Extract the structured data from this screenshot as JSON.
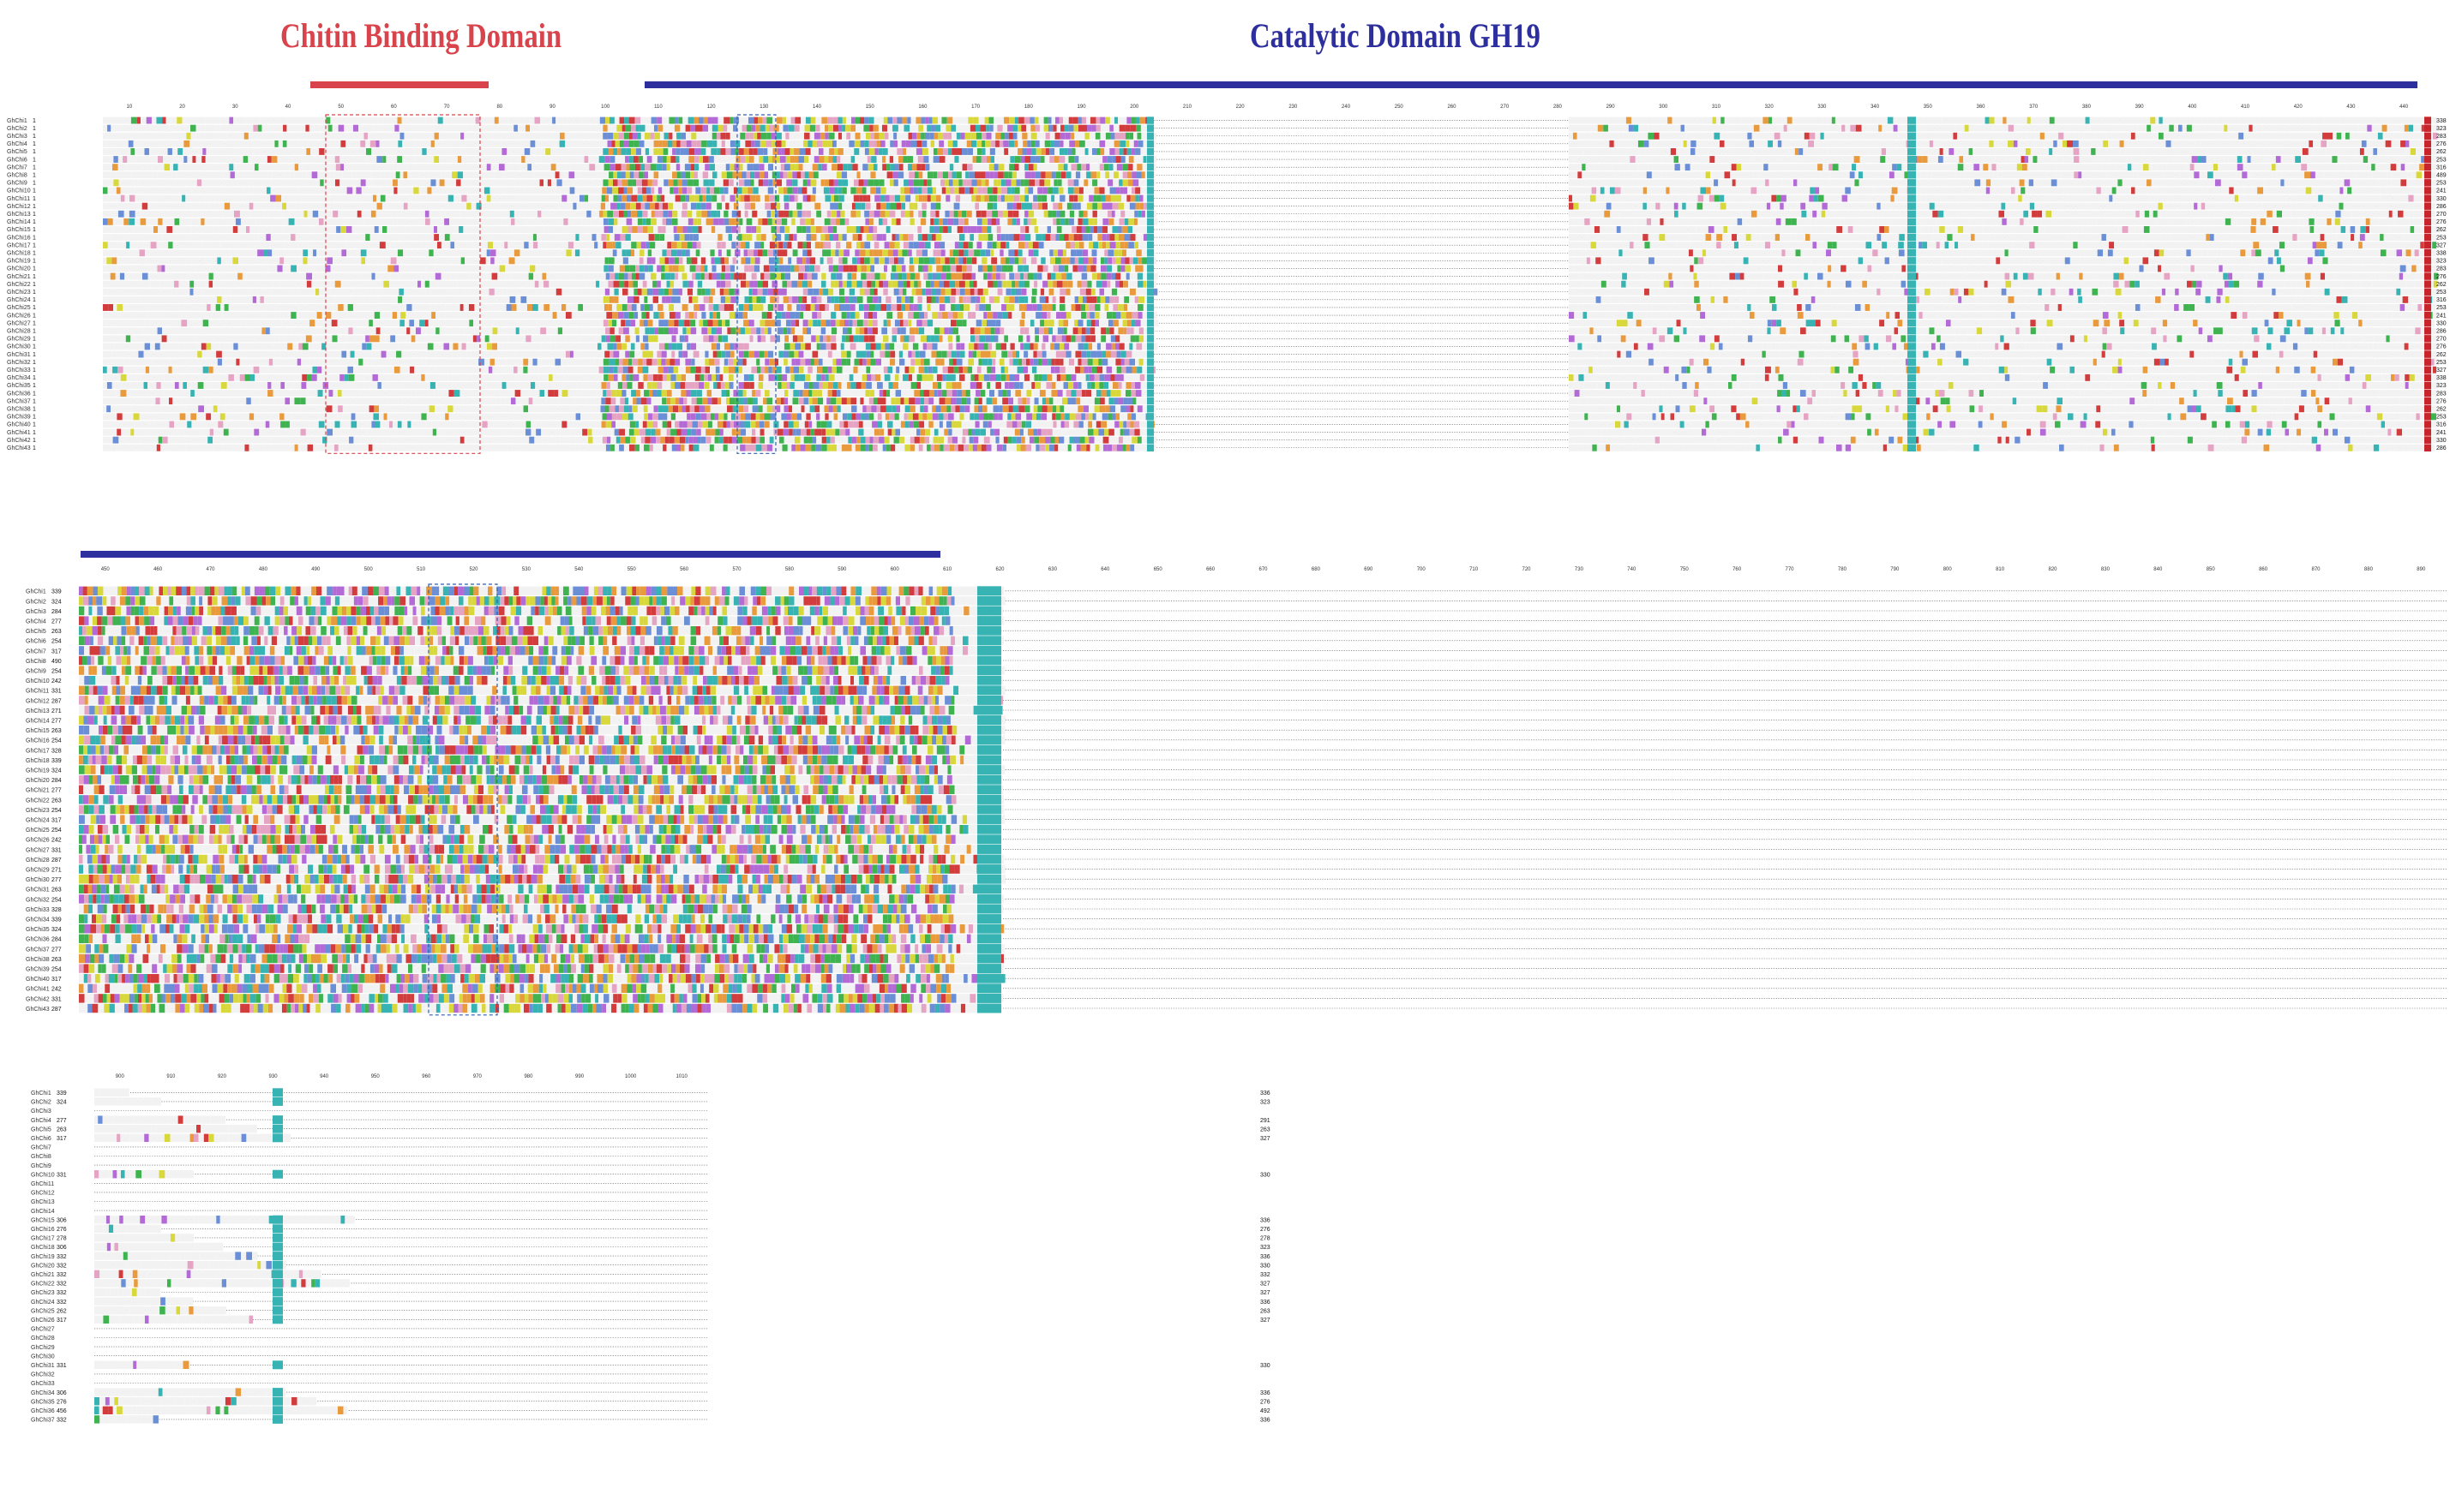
{
  "figure": {
    "domains": [
      {
        "name": "Chitin Binding Domain",
        "color": "#d9434b"
      },
      {
        "name": "Catalytic Domain GH19",
        "color": "#2e2f9e"
      }
    ]
  },
  "blocks": [
    {
      "id": "block-1",
      "label_x": 8,
      "seq_start": 120,
      "seq_end": 2835,
      "end_num_x": 2842,
      "row_height": 9.1,
      "ticks": [
        "10",
        "20",
        "30",
        "40",
        "50",
        "60",
        "70",
        "80",
        "90",
        "100",
        "110",
        "120",
        "130",
        "140",
        "150",
        "160",
        "170",
        "180",
        "190",
        "200",
        "210",
        "220",
        "230",
        "240",
        "250",
        "260",
        "270",
        "280",
        "290",
        "300",
        "310",
        "320",
        "330",
        "340",
        "350",
        "360",
        "370",
        "380",
        "390",
        "400",
        "410",
        "420",
        "430",
        "440"
      ],
      "rows": [
        {
          "label": "GhChi1",
          "start": "1",
          "end": "338"
        },
        {
          "label": "GhChi2",
          "start": "1",
          "end": "323"
        },
        {
          "label": "GhChi3",
          "start": "1",
          "end": "283"
        },
        {
          "label": "GhChi4",
          "start": "1",
          "end": "276"
        },
        {
          "label": "GhChi5",
          "start": "1",
          "end": "262"
        },
        {
          "label": "GhChi6",
          "start": "1",
          "end": "253"
        },
        {
          "label": "GhChi7",
          "start": "1",
          "end": "316"
        },
        {
          "label": "GhChi8",
          "start": "1",
          "end": "489"
        },
        {
          "label": "GhChi9",
          "start": "1",
          "end": "253"
        },
        {
          "label": "GhChi10",
          "start": "1",
          "end": "241"
        },
        {
          "label": "GhChi11",
          "start": "1",
          "end": "330"
        },
        {
          "label": "GhChi12",
          "start": "1",
          "end": "286"
        },
        {
          "label": "GhChi13",
          "start": "1",
          "end": "270"
        },
        {
          "label": "GhChi14",
          "start": "1",
          "end": "276"
        },
        {
          "label": "GhChi15",
          "start": "1",
          "end": "262"
        },
        {
          "label": "GhChi16",
          "start": "1",
          "end": "253"
        },
        {
          "label": "GhChi17",
          "start": "1",
          "end": "327"
        },
        {
          "label": "GhChi18",
          "start": "1",
          "end": "338"
        },
        {
          "label": "GhChi19",
          "start": "1",
          "end": "323"
        },
        {
          "label": "GhChi20",
          "start": "1",
          "end": "283"
        },
        {
          "label": "GhChi21",
          "start": "1",
          "end": "276"
        },
        {
          "label": "GhChi22",
          "start": "1",
          "end": "262"
        },
        {
          "label": "GhChi23",
          "start": "1",
          "end": "253"
        },
        {
          "label": "GhChi24",
          "start": "1",
          "end": "316"
        },
        {
          "label": "GhChi25",
          "start": "1",
          "end": "253"
        },
        {
          "label": "GhChi26",
          "start": "1",
          "end": "241"
        },
        {
          "label": "GhChi27",
          "start": "1",
          "end": "330"
        },
        {
          "label": "GhChi28",
          "start": "1",
          "end": "286"
        },
        {
          "label": "GhChi29",
          "start": "1",
          "end": "270"
        },
        {
          "label": "GhChi30",
          "start": "1",
          "end": "276"
        },
        {
          "label": "GhChi31",
          "start": "1",
          "end": "262"
        },
        {
          "label": "GhChi32",
          "start": "1",
          "end": "253"
        },
        {
          "label": "GhChi33",
          "start": "1",
          "end": "327"
        },
        {
          "label": "GhChi34",
          "start": "1",
          "end": "338"
        },
        {
          "label": "GhChi35",
          "start": "1",
          "end": "323"
        },
        {
          "label": "GhChi36",
          "start": "1",
          "end": "283"
        },
        {
          "label": "GhChi37",
          "start": "1",
          "end": "276"
        },
        {
          "label": "GhChi38",
          "start": "1",
          "end": "262"
        },
        {
          "label": "GhChi39",
          "start": "1",
          "end": "253"
        },
        {
          "label": "GhChi40",
          "start": "1",
          "end": "316"
        },
        {
          "label": "GhChi41",
          "start": "1",
          "end": "241"
        },
        {
          "label": "GhChi42",
          "start": "1",
          "end": "330"
        },
        {
          "label": "GhChi43",
          "start": "1",
          "end": "286"
        }
      ]
    },
    {
      "id": "block-2",
      "label_x": 30,
      "seq_start": 92,
      "seq_end": 2855,
      "end_num_x": 0,
      "row_height": 11.6,
      "ticks": [
        "450",
        "460",
        "470",
        "480",
        "490",
        "500",
        "510",
        "520",
        "530",
        "540",
        "550",
        "560",
        "570",
        "580",
        "590",
        "600",
        "610",
        "620",
        "630",
        "640",
        "650",
        "660",
        "670",
        "680",
        "690",
        "700",
        "710",
        "720",
        "730",
        "740",
        "750",
        "760",
        "770",
        "780",
        "790",
        "800",
        "810",
        "820",
        "830",
        "840",
        "850",
        "860",
        "870",
        "880",
        "890"
      ],
      "rows": [
        {
          "label": "GhChi1",
          "start": "339",
          "end": ""
        },
        {
          "label": "GhChi2",
          "start": "324",
          "end": ""
        },
        {
          "label": "GhChi3",
          "start": "284",
          "end": ""
        },
        {
          "label": "GhChi4",
          "start": "277",
          "end": ""
        },
        {
          "label": "GhChi5",
          "start": "263",
          "end": ""
        },
        {
          "label": "GhChi6",
          "start": "254",
          "end": ""
        },
        {
          "label": "GhChi7",
          "start": "317",
          "end": ""
        },
        {
          "label": "GhChi8",
          "start": "490",
          "end": ""
        },
        {
          "label": "GhChi9",
          "start": "254",
          "end": ""
        },
        {
          "label": "GhChi10",
          "start": "242",
          "end": ""
        },
        {
          "label": "GhChi11",
          "start": "331",
          "end": ""
        },
        {
          "label": "GhChi12",
          "start": "287",
          "end": ""
        },
        {
          "label": "GhChi13",
          "start": "271",
          "end": ""
        },
        {
          "label": "GhChi14",
          "start": "277",
          "end": ""
        },
        {
          "label": "GhChi15",
          "start": "263",
          "end": ""
        },
        {
          "label": "GhChi16",
          "start": "254",
          "end": ""
        },
        {
          "label": "GhChi17",
          "start": "328",
          "end": ""
        },
        {
          "label": "GhChi18",
          "start": "339",
          "end": ""
        },
        {
          "label": "GhChi19",
          "start": "324",
          "end": ""
        },
        {
          "label": "GhChi20",
          "start": "284",
          "end": ""
        },
        {
          "label": "GhChi21",
          "start": "277",
          "end": ""
        },
        {
          "label": "GhChi22",
          "start": "263",
          "end": ""
        },
        {
          "label": "GhChi23",
          "start": "254",
          "end": ""
        },
        {
          "label": "GhChi24",
          "start": "317",
          "end": ""
        },
        {
          "label": "GhChi25",
          "start": "254",
          "end": ""
        },
        {
          "label": "GhChi26",
          "start": "242",
          "end": ""
        },
        {
          "label": "GhChi27",
          "start": "331",
          "end": ""
        },
        {
          "label": "GhChi28",
          "start": "287",
          "end": ""
        },
        {
          "label": "GhChi29",
          "start": "271",
          "end": ""
        },
        {
          "label": "GhChi30",
          "start": "277",
          "end": ""
        },
        {
          "label": "GhChi31",
          "start": "263",
          "end": ""
        },
        {
          "label": "GhChi32",
          "start": "254",
          "end": ""
        },
        {
          "label": "GhChi33",
          "start": "328",
          "end": ""
        },
        {
          "label": "GhChi34",
          "start": "339",
          "end": ""
        },
        {
          "label": "GhChi35",
          "start": "324",
          "end": ""
        },
        {
          "label": "GhChi36",
          "start": "284",
          "end": ""
        },
        {
          "label": "GhChi37",
          "start": "277",
          "end": ""
        },
        {
          "label": "GhChi38",
          "start": "263",
          "end": ""
        },
        {
          "label": "GhChi39",
          "start": "254",
          "end": ""
        },
        {
          "label": "GhChi40",
          "start": "317",
          "end": ""
        },
        {
          "label": "GhChi41",
          "start": "242",
          "end": ""
        },
        {
          "label": "GhChi42",
          "start": "331",
          "end": ""
        },
        {
          "label": "GhChi43",
          "start": "287",
          "end": ""
        }
      ]
    },
    {
      "id": "block-3",
      "label_x": 36,
      "seq_start": 110,
      "seq_end": 825,
      "end_num_x": 1470,
      "row_height": 10.6,
      "ticks": [
        "900",
        "910",
        "920",
        "930",
        "940",
        "950",
        "960",
        "970",
        "980",
        "990",
        "1000",
        "1010"
      ],
      "rows": [
        {
          "label": "GhChi1",
          "start": "339",
          "end": "336"
        },
        {
          "label": "GhChi2",
          "start": "324",
          "end": "323"
        },
        {
          "label": "GhChi3",
          "start": "",
          "end": ""
        },
        {
          "label": "GhChi4",
          "start": "277",
          "end": "291"
        },
        {
          "label": "GhChi5",
          "start": "263",
          "end": "263"
        },
        {
          "label": "GhChi6",
          "start": "317",
          "end": "327"
        },
        {
          "label": "GhChi7",
          "start": "",
          "end": ""
        },
        {
          "label": "GhChi8",
          "start": "",
          "end": ""
        },
        {
          "label": "GhChi9",
          "start": "",
          "end": ""
        },
        {
          "label": "GhChi10",
          "start": "331",
          "end": "330"
        },
        {
          "label": "GhChi11",
          "start": "",
          "end": ""
        },
        {
          "label": "GhChi12",
          "start": "",
          "end": ""
        },
        {
          "label": "GhChi13",
          "start": "",
          "end": ""
        },
        {
          "label": "GhChi14",
          "start": "",
          "end": ""
        },
        {
          "label": "GhChi15",
          "start": "306",
          "end": "336"
        },
        {
          "label": "GhChi16",
          "start": "276",
          "end": "276"
        },
        {
          "label": "GhChi17",
          "start": "278",
          "end": "278"
        },
        {
          "label": "GhChi18",
          "start": "306",
          "end": "323"
        },
        {
          "label": "GhChi19",
          "start": "332",
          "end": "336"
        },
        {
          "label": "GhChi20",
          "start": "332",
          "end": "330"
        },
        {
          "label": "GhChi21",
          "start": "332",
          "end": "332"
        },
        {
          "label": "GhChi22",
          "start": "332",
          "end": "327"
        },
        {
          "label": "GhChi23",
          "start": "332",
          "end": "327"
        },
        {
          "label": "GhChi24",
          "start": "332",
          "end": "336"
        },
        {
          "label": "GhChi25",
          "start": "262",
          "end": "263"
        },
        {
          "label": "GhChi26",
          "start": "317",
          "end": "327"
        },
        {
          "label": "GhChi27",
          "start": "",
          "end": ""
        },
        {
          "label": "GhChi28",
          "start": "",
          "end": ""
        },
        {
          "label": "GhChi29",
          "start": "",
          "end": ""
        },
        {
          "label": "GhChi30",
          "start": "",
          "end": ""
        },
        {
          "label": "GhChi31",
          "start": "331",
          "end": "330"
        },
        {
          "label": "GhChi32",
          "start": "",
          "end": ""
        },
        {
          "label": "GhChi33",
          "start": "",
          "end": ""
        },
        {
          "label": "GhChi34",
          "start": "306",
          "end": "336"
        },
        {
          "label": "GhChi35",
          "start": "276",
          "end": "276"
        },
        {
          "label": "GhChi36",
          "start": "456",
          "end": "492"
        },
        {
          "label": "GhChi37",
          "start": "332",
          "end": "336"
        }
      ]
    }
  ],
  "shading_palette": {
    "hydrophobic": "#6a8fd6",
    "glycine": "#e89a3c",
    "proline": "#d8d83c",
    "polar": "#3fb34f",
    "acidic": "#b36ad6",
    "basic": "#d23c3c",
    "aromatic": "#38b3b3",
    "cysteine": "#e6a4c4"
  }
}
